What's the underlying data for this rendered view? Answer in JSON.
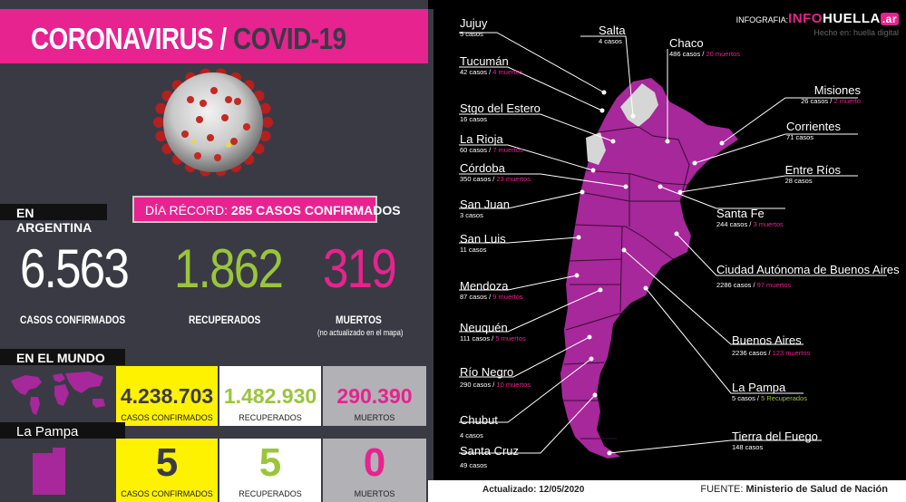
{
  "title": {
    "part1": "CORONAVIRUS",
    "separator": " / ",
    "part2": "COVID-19"
  },
  "credit": {
    "prefix": "INFOGRAFIA:",
    "brand_a": "INFO",
    "brand_b": "HUELLA",
    "brand_c": ".ar",
    "byline": "Hecho en: huella digital"
  },
  "argentina": {
    "label": "EN ARGENTINA",
    "record_text": "DÍA RÉCORD:",
    "record_value": "285 CASOS CONFIRMADOS",
    "confirmed": "6.563",
    "recovered": "1.862",
    "deaths": "319",
    "confirmed_label": "CASOS CONFIRMADOS",
    "recovered_label": "RECUPERADOS",
    "deaths_label": "MUERTOS",
    "deaths_note": "(no actualizado en el mapa)"
  },
  "world": {
    "label": "EN EL MUNDO",
    "confirmed": "4.238.703",
    "recovered": "1.482.930",
    "deaths": "290.390",
    "confirmed_label": "CASOS CONFIRMADOS",
    "recovered_label": "RECUPERADOS",
    "deaths_label": "MUERTOS"
  },
  "lapampa": {
    "label": "La Pampa",
    "confirmed": "5",
    "recovered": "5",
    "deaths": "0",
    "confirmed_label": "CASOS CONFIRMADOS",
    "recovered_label": "RECUPERADOS",
    "deaths_label": "MUERTOS"
  },
  "provinces": {
    "jujuy": {
      "name": "Jujuy",
      "cases": "5 casos"
    },
    "salta": {
      "name": "Salta",
      "cases": "4 casos"
    },
    "chaco": {
      "name": "Chaco",
      "cases": "486 casos /",
      "deaths": "20 muertos"
    },
    "tucuman": {
      "name": "Tucumán",
      "cases": "42 casos /",
      "deaths": "4 muertos"
    },
    "misiones": {
      "name": "Misiones",
      "cases": "26 casos /",
      "deaths": "2 muerto"
    },
    "stgo": {
      "name": "Stgo del Estero",
      "cases": "16 casos"
    },
    "corrientes": {
      "name": "Corrientes",
      "cases": "71 casos"
    },
    "larioja": {
      "name": "La Rioja",
      "cases": "60 casos /",
      "deaths": "7 muertos"
    },
    "cordoba": {
      "name": "Córdoba",
      "cases": "350 casos /",
      "deaths": "23 muertos"
    },
    "entrerios": {
      "name": "Entre Ríos",
      "cases": "28 casos"
    },
    "sanjuan": {
      "name": "San Juan",
      "cases": "3 casos"
    },
    "santafe": {
      "name": "Santa Fe",
      "cases": "244 casos /",
      "deaths": "3 muertos"
    },
    "sanluis": {
      "name": "San Luis",
      "cases": "11 casos"
    },
    "caba": {
      "name": "Ciudad Autónoma de Buenos Aires",
      "cases": "2286 casos /",
      "deaths": "97 muertos"
    },
    "mendoza": {
      "name": "Mendoza",
      "cases": "87 casos /",
      "deaths": "9 muertos"
    },
    "neuquen": {
      "name": "Neuquén",
      "cases": "111 casos /",
      "deaths": "5 muertos"
    },
    "bsas": {
      "name": "Buenos Aires",
      "cases": "2236 casos /",
      "deaths": "123 muertos"
    },
    "rionegro": {
      "name": "Río Negro",
      "cases": "290 casos /",
      "deaths": "10 muertos"
    },
    "lapampa": {
      "name": "La Pampa",
      "cases": "5 casos /",
      "recovered": "5 Recuperados"
    },
    "chubut": {
      "name": "Chubut",
      "cases": "4 casos"
    },
    "tdf": {
      "name": "Tierra del Fuego",
      "cases": "148 casos"
    },
    "santacruz": {
      "name": "Santa Cruz",
      "cases": "49 casos"
    }
  },
  "footer": {
    "updated": "Actualizado: 12/05/2020",
    "source_label": "FUENTE:",
    "source_value": "Ministerio de Salud de Nación"
  },
  "colors": {
    "accent": "#e6238f",
    "green": "#9ac53b",
    "yellow": "#fff200",
    "panel": "#3a3a45",
    "map": "#a6289a"
  }
}
